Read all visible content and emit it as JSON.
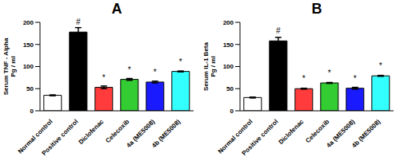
{
  "chart_data": [
    {
      "type": "bar",
      "title": "A",
      "ylabel": [
        "Serum TNF - Alpha",
        "Pg / ml"
      ],
      "categories": [
        "Normal control",
        "Positive control",
        "Diclofenac",
        "Celecoxib",
        "4a (ME5008)",
        "4b (ME5008)"
      ],
      "values": [
        35,
        178,
        53,
        71,
        65,
        89
      ],
      "errors": [
        1,
        10,
        3,
        2,
        2,
        1
      ],
      "annotations": [
        null,
        "#",
        "*",
        "*",
        "*",
        "*"
      ],
      "colors": [
        "#ffffff",
        "#000000",
        "#ff3b3b",
        "#33cc33",
        "#1a1aff",
        "#33ffff"
      ],
      "ylim": [
        0,
        200
      ],
      "yticks": [
        0,
        50,
        100,
        150,
        200
      ],
      "grid": false
    },
    {
      "type": "bar",
      "title": "B",
      "ylabel": [
        "Serum IL-1 Beta",
        "Pg / ml"
      ],
      "categories": [
        "Normal control",
        "Positive control",
        "Diclofenac",
        "Celecoxib",
        "4a (ME5008)",
        "4b (ME5008)"
      ],
      "values": [
        30,
        158,
        50,
        63,
        51,
        79
      ],
      "errors": [
        1,
        8,
        1,
        1,
        2,
        1
      ],
      "annotations": [
        null,
        "#",
        "*",
        "*",
        "*",
        "*"
      ],
      "colors": [
        "#ffffff",
        "#000000",
        "#ff3b3b",
        "#33cc33",
        "#1a1aff",
        "#33ffff"
      ],
      "ylim": [
        0,
        200
      ],
      "yticks": [
        0,
        50,
        100,
        150,
        200
      ],
      "grid": false
    }
  ]
}
